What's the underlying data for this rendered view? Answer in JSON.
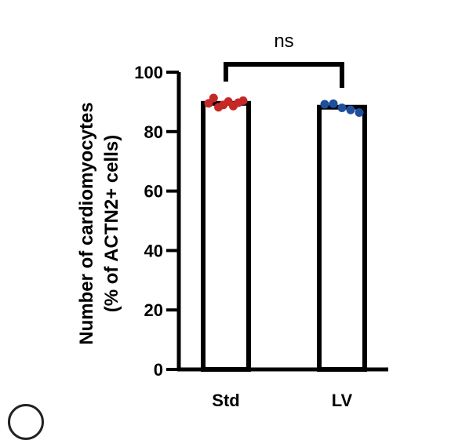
{
  "chart_data": {
    "type": "bar",
    "categories": [
      "Std",
      "LV"
    ],
    "values": [
      89.5,
      88.2
    ],
    "points": [
      [
        89.5,
        91.3,
        88.2,
        89.0,
        90.1,
        88.6,
        89.7,
        90.4
      ],
      [
        89.2,
        89.4,
        88.0,
        87.3,
        86.4
      ]
    ],
    "point_colors": [
      "#c62828",
      "#1f4f9c"
    ],
    "ylabel_line1": "Number of cardiomyocytes",
    "ylabel_line2": "(% of ACTN2+ cells)",
    "ylim": [
      0,
      100
    ],
    "yticks": [
      0,
      20,
      40,
      60,
      80,
      100
    ],
    "significance": "ns",
    "grid": false,
    "legend": "none"
  }
}
